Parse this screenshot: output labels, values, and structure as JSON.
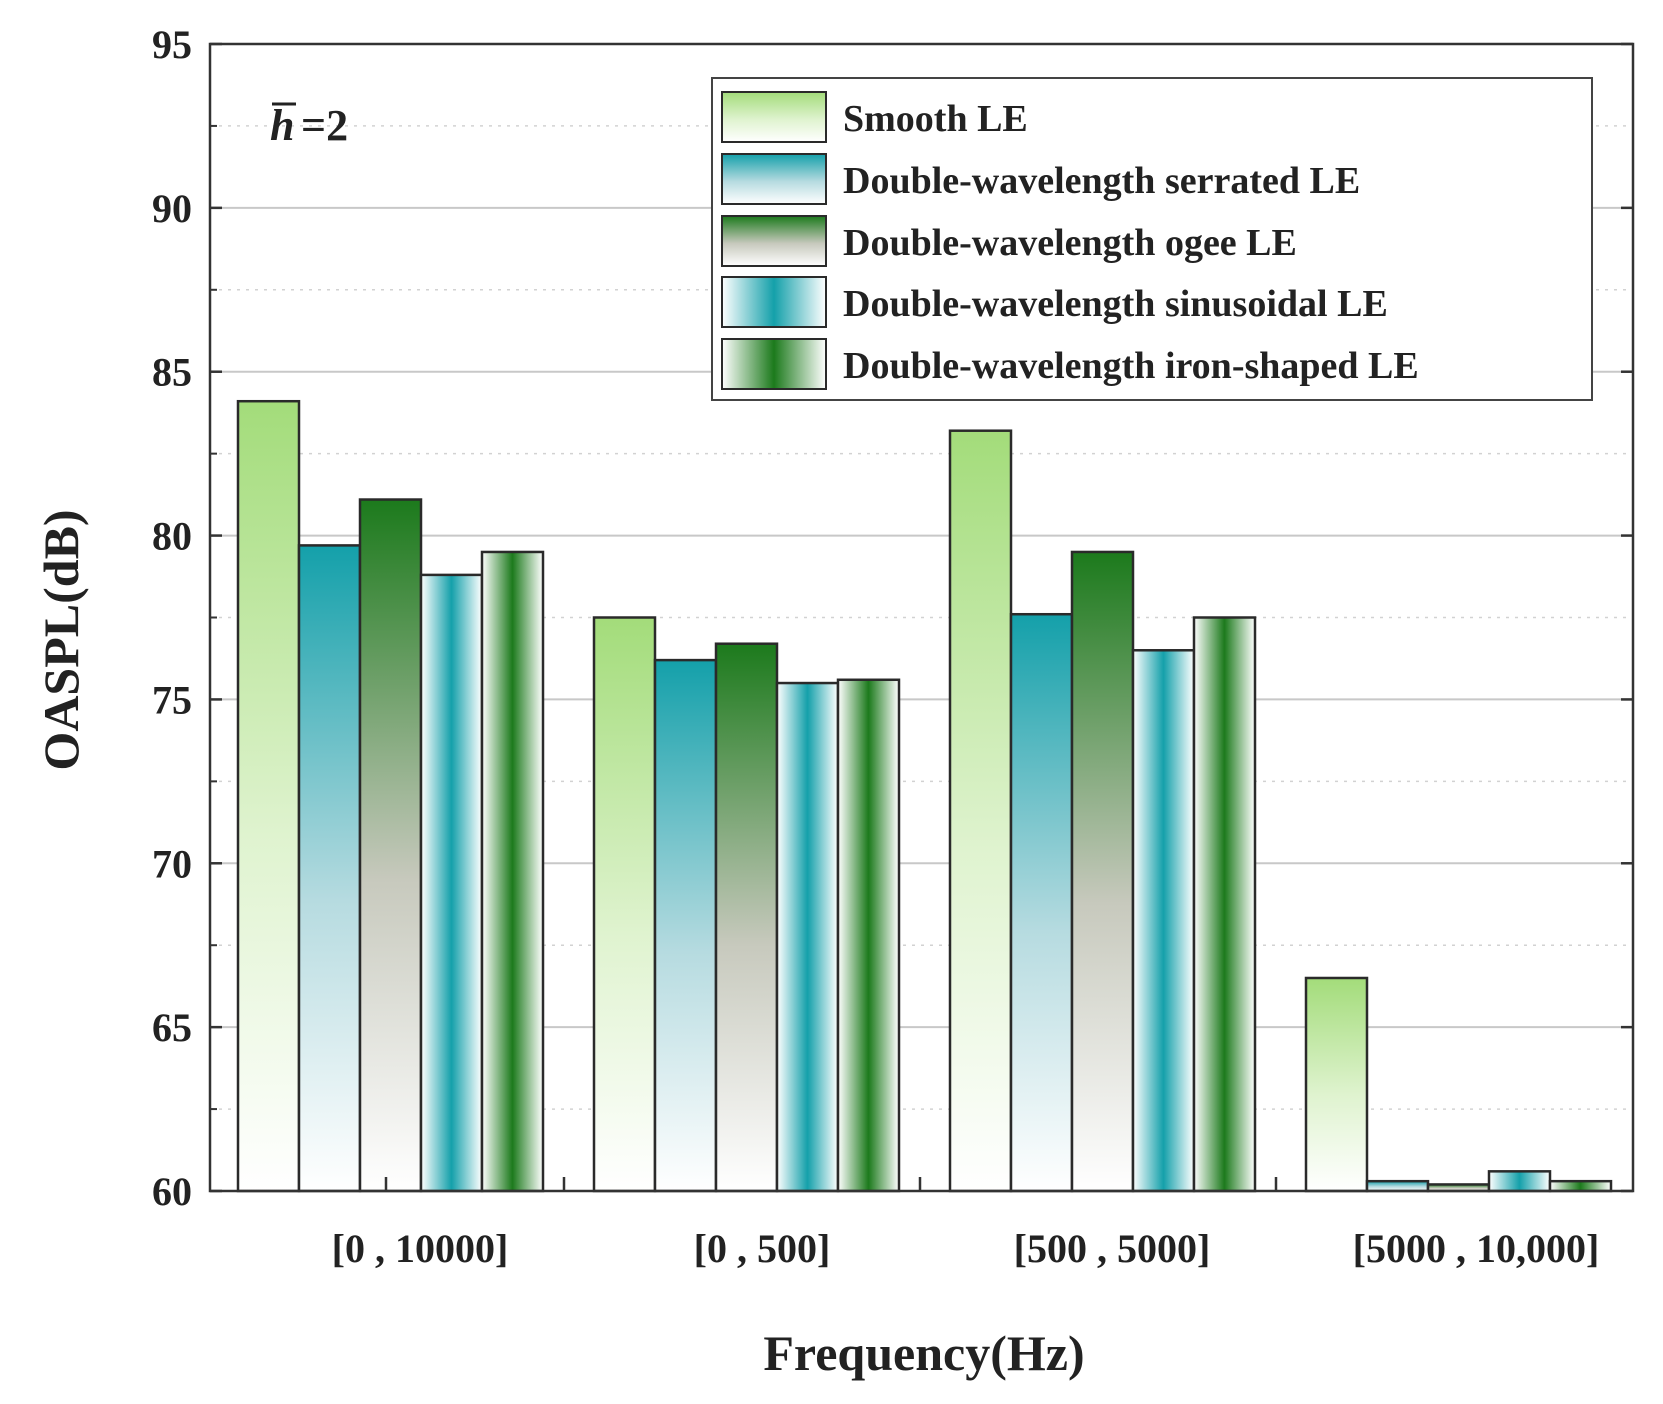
{
  "chart_data": {
    "type": "bar",
    "title": "",
    "xlabel": "Frequency(Hz)",
    "ylabel": "OASPL(dB)",
    "ylim": [
      60,
      95
    ],
    "yticks": [
      60,
      65,
      70,
      75,
      80,
      85,
      90,
      95
    ],
    "grid": true,
    "legend_position": "top-right",
    "annotation": {
      "symbol": "h",
      "text": "=2"
    },
    "categories": [
      "[0 , 10000]",
      "[0 , 500]",
      "[500 , 5000]",
      "[5000 , 10,000]"
    ],
    "series": [
      {
        "name": "Smooth LE",
        "values": [
          84.1,
          77.5,
          83.2,
          66.5
        ]
      },
      {
        "name": "Double-wavelength serrated LE",
        "values": [
          79.7,
          76.2,
          77.6,
          60.3
        ]
      },
      {
        "name": "Double-wavelength ogee LE",
        "values": [
          81.1,
          76.7,
          79.5,
          60.2
        ]
      },
      {
        "name": "Double-wavelength sinusoidal LE",
        "values": [
          78.8,
          75.5,
          76.5,
          60.6
        ]
      },
      {
        "name": "Double-wavelength iron-shaped LE",
        "values": [
          79.5,
          75.6,
          77.5,
          60.3
        ]
      }
    ],
    "colors": {
      "light_green": "#a6dd7e",
      "teal": "#1aa3ad",
      "dark_green": "#1e7a1e",
      "bar_outline": "#2a2a2a",
      "grid": "#c8c8c8"
    }
  }
}
